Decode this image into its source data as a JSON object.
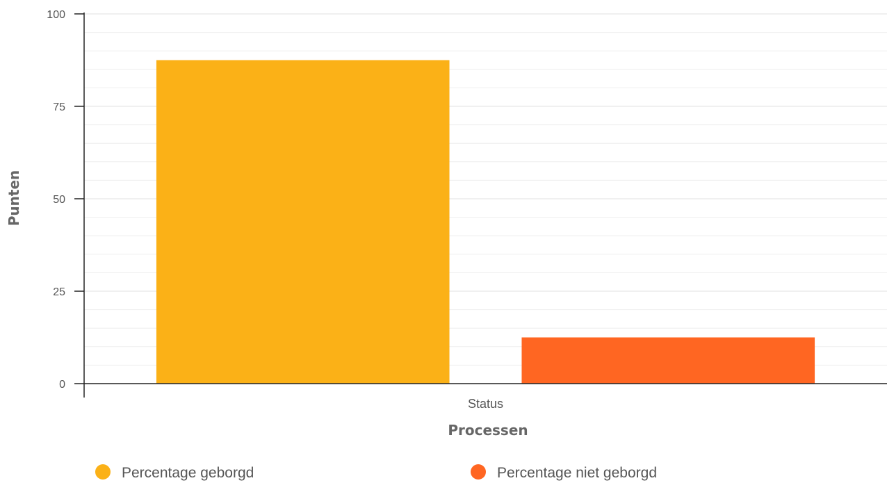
{
  "chart_data": {
    "type": "bar",
    "categories": [
      "Status"
    ],
    "series": [
      {
        "name": "Percentage geborgd",
        "values": [
          87.5
        ],
        "color": "#FBB117"
      },
      {
        "name": "Percentage niet geborgd",
        "values": [
          12.5
        ],
        "color": "#FF6622"
      }
    ],
    "xlabel": "Processen",
    "ylabel": "Punten",
    "ylim": [
      0,
      100
    ],
    "yticks": [
      0,
      25,
      50,
      75,
      100
    ],
    "grid": true,
    "legend_position": "bottom"
  }
}
